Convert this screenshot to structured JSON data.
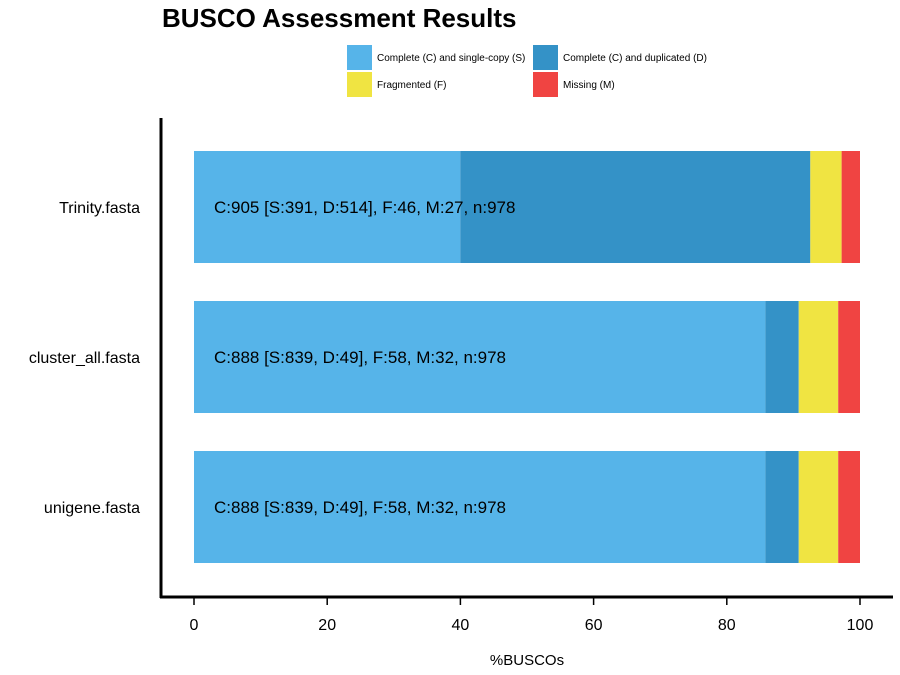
{
  "chart_data": {
    "type": "bar",
    "orientation": "horizontal",
    "stacked": true,
    "title": "BUSCO Assessment Results",
    "xlabel": "%BUSCOs",
    "ylabel": "",
    "xlim": [
      0,
      100
    ],
    "x_ticks": [
      "0",
      "20",
      "40",
      "60",
      "80",
      "100"
    ],
    "grid": false,
    "legend_position": "top",
    "categories": [
      "Trinity.fasta",
      "cluster_all.fasta",
      "unigene.fasta"
    ],
    "series": [
      {
        "name": "Complete (C) and single-copy (S)",
        "color": "#56B4E9",
        "values": [
          39.98,
          85.79,
          85.79
        ]
      },
      {
        "name": "Complete (C) and duplicated (D)",
        "color": "#3492C7",
        "values": [
          52.56,
          5.01,
          5.01
        ]
      },
      {
        "name": "Fragmented (F)",
        "color": "#F0E442",
        "values": [
          4.7,
          5.93,
          5.93
        ]
      },
      {
        "name": "Missing (M)",
        "color": "#F04442",
        "values": [
          2.76,
          3.27,
          3.27
        ]
      }
    ],
    "bar_labels": [
      "C:905 [S:391, D:514], F:46, M:27, n:978",
      "C:888 [S:839, D:49], F:58, M:32, n:978",
      "C:888 [S:839, D:49], F:58, M:32, n:978"
    ]
  }
}
